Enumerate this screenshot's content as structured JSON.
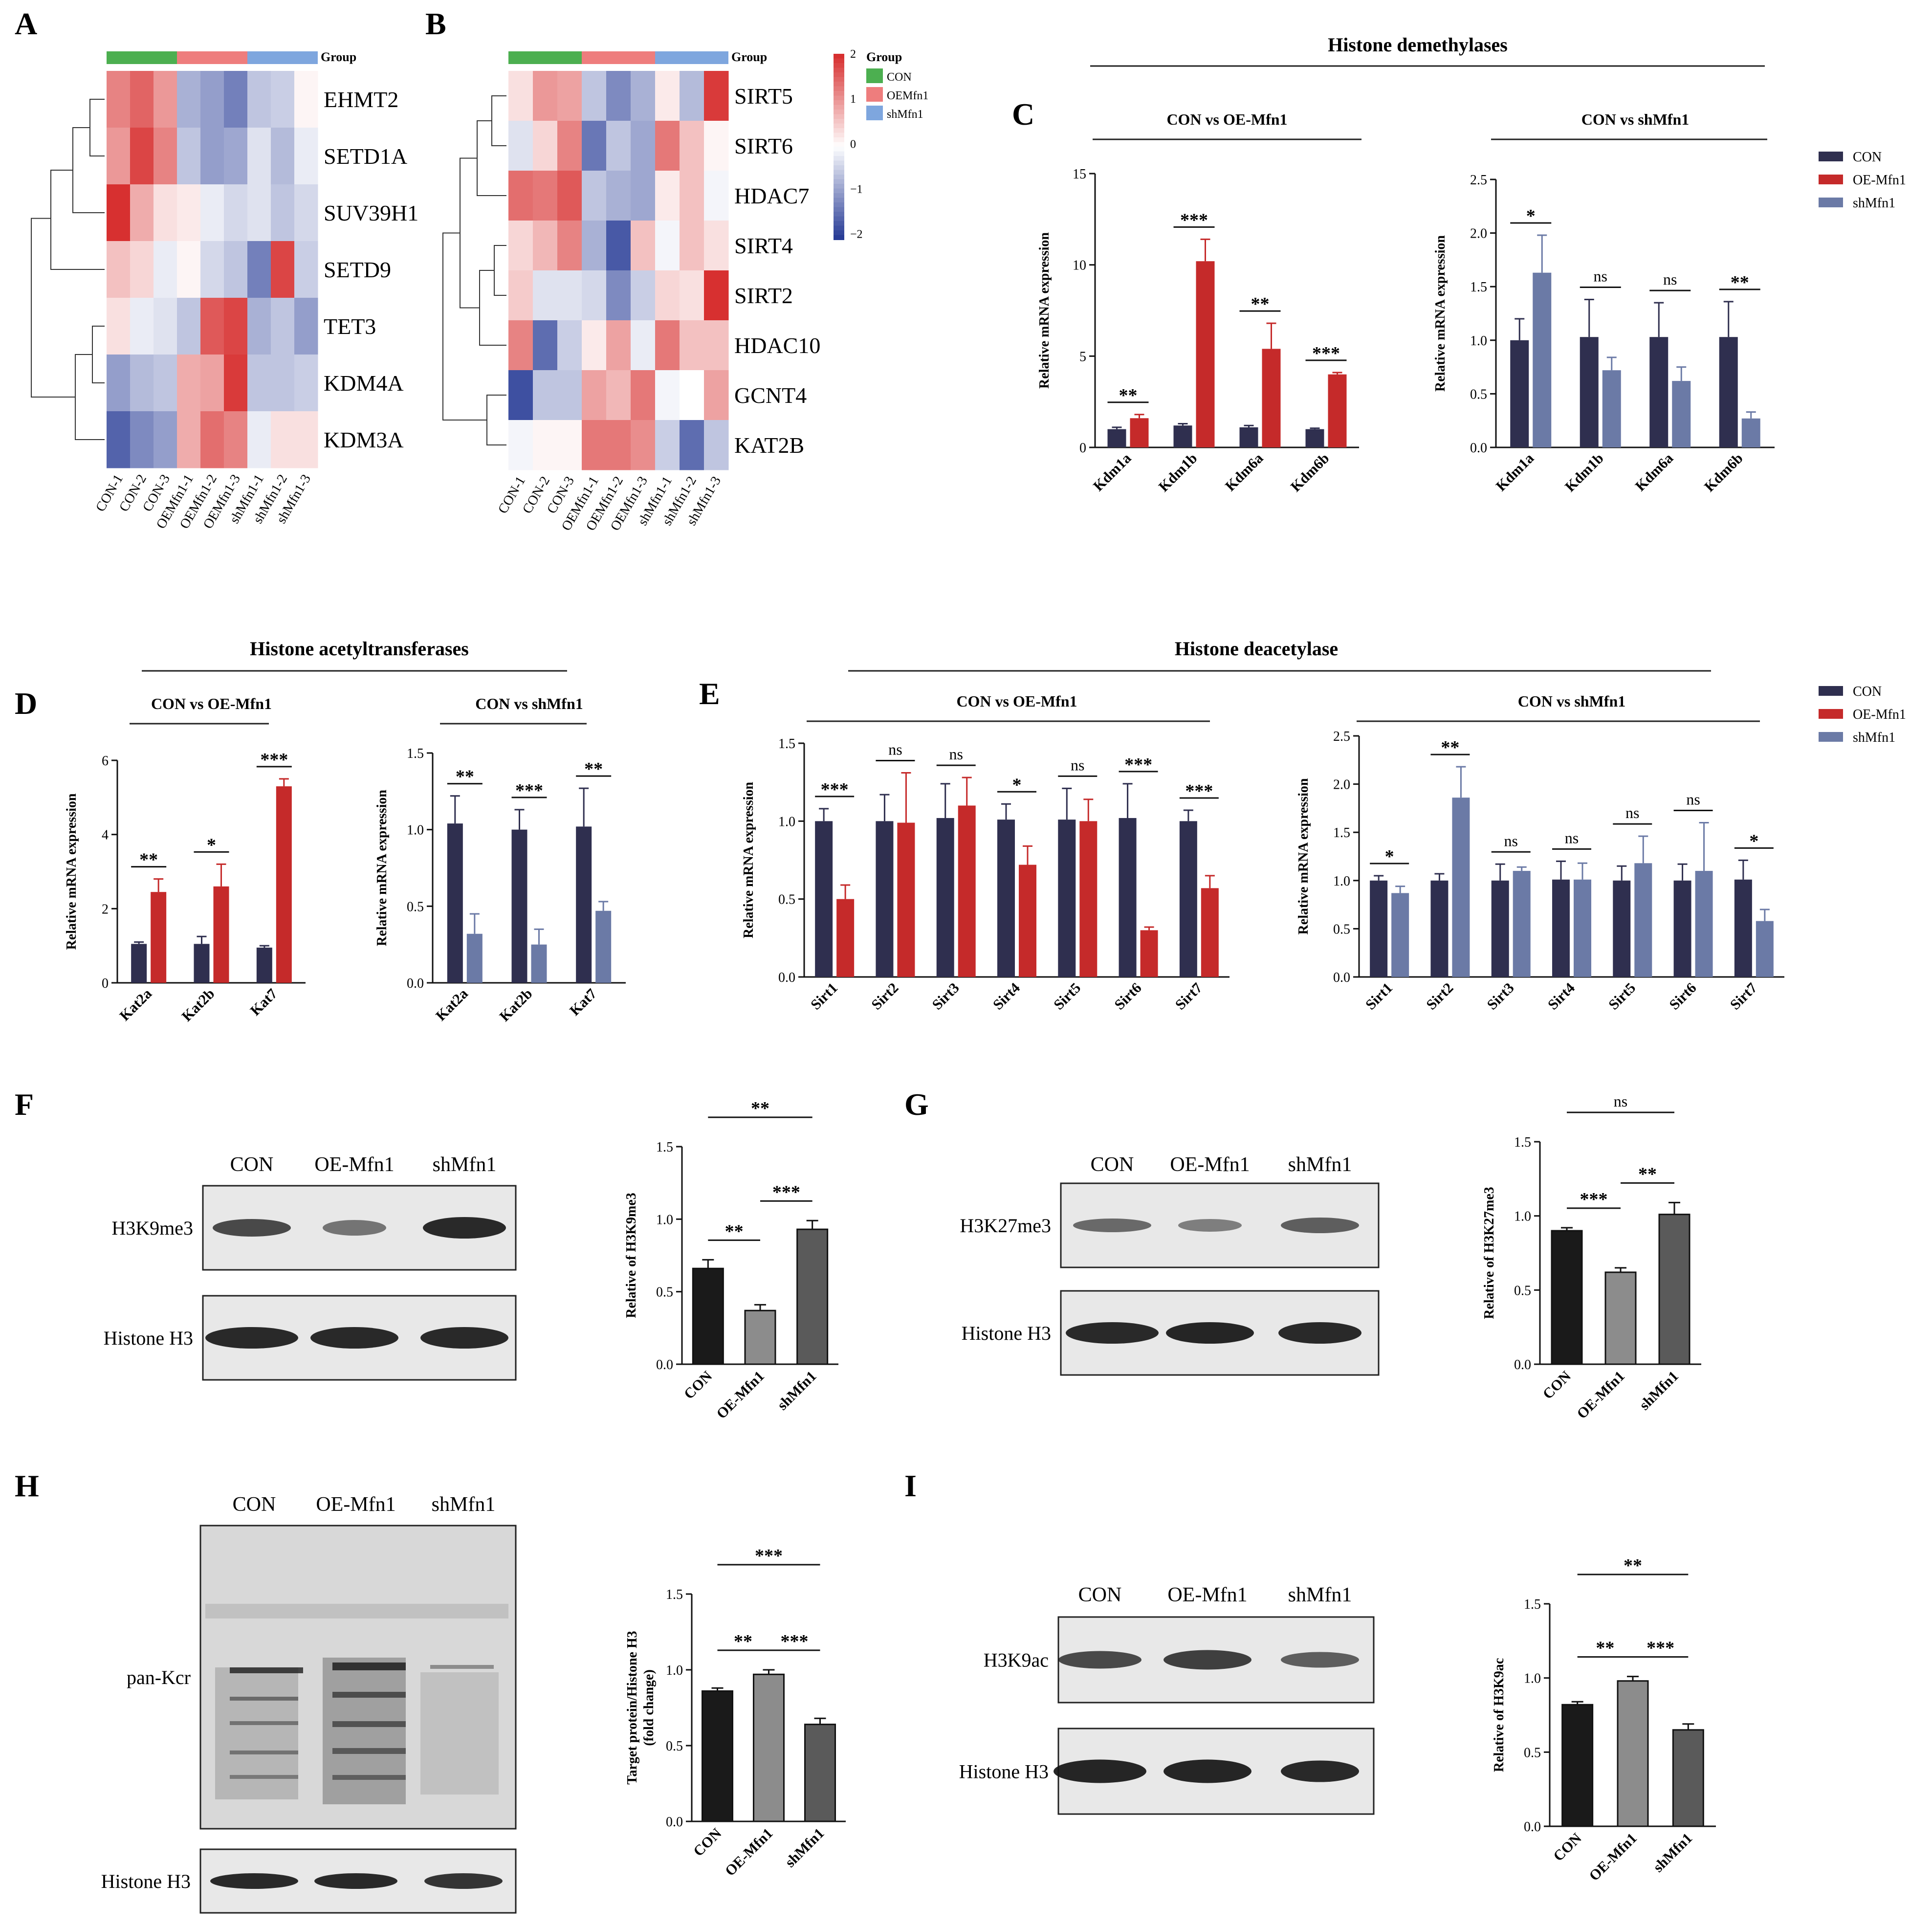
{
  "panel_letters": [
    "A",
    "B",
    "C",
    "D",
    "E",
    "F",
    "G",
    "H",
    "I"
  ],
  "colors": {
    "CON": "#2f2f4f",
    "OE": "#c52a2a",
    "sh": "#6b7aa6",
    "gCON": "#4caf50",
    "gOE": "#ee7d7d",
    "gSH": "#7ea6de",
    "western_black": "#1a1a1a",
    "western_gray": "#8c8c8c",
    "western_dark": "#5a5a5a"
  },
  "legend": {
    "title": "Group",
    "items": [
      "CON",
      "OEMfn1",
      "shMfn1"
    ],
    "scale": [
      "2",
      "1",
      "0",
      "−1",
      "−2"
    ]
  },
  "bar_legend": [
    "CON",
    "OE-Mfn1",
    "shMfn1"
  ],
  "chart_data": [
    {
      "id": "A",
      "type": "heatmap",
      "group_label": "Group",
      "rows": [
        "EHMT2",
        "SETD1A",
        "SUV39H1",
        "SETD9",
        "TET3",
        "KDM4A",
        "KDM3A"
      ],
      "cols": [
        "CON-1",
        "CON-2",
        "CON-3",
        "OEMfn1-1",
        "OEMfn1-2",
        "OEMfn1-3",
        "shMfn1-1",
        "shMfn1-2",
        "shMfn1-3"
      ],
      "values": [
        [
          1.2,
          1.5,
          1.0,
          -0.8,
          -1.0,
          -1.3,
          -0.6,
          -0.5,
          0.1
        ],
        [
          1.0,
          1.8,
          1.2,
          -0.6,
          -1.0,
          -0.9,
          -0.3,
          -0.7,
          -0.2
        ],
        [
          2.0,
          0.8,
          0.3,
          0.2,
          -0.2,
          -0.4,
          -0.3,
          -0.6,
          -0.4
        ],
        [
          0.6,
          0.4,
          -0.2,
          0.1,
          -0.4,
          -0.6,
          -1.3,
          1.8,
          -0.5
        ],
        [
          0.3,
          -0.2,
          -0.3,
          -0.6,
          1.6,
          1.8,
          -0.8,
          -0.6,
          -1.0
        ],
        [
          -1.0,
          -0.7,
          -0.6,
          0.8,
          0.9,
          1.9,
          -0.6,
          -0.6,
          -0.5
        ],
        [
          -1.6,
          -1.2,
          -1.0,
          0.8,
          1.4,
          1.2,
          -0.2,
          0.3,
          0.3
        ]
      ]
    },
    {
      "id": "B",
      "type": "heatmap",
      "group_label": "Group",
      "rows": [
        "SIRT5",
        "SIRT6",
        "HDAC7",
        "SIRT4",
        "SIRT2",
        "HDAC10",
        "GCNT4",
        "KAT2B"
      ],
      "cols": [
        "CON-1",
        "CON-2",
        "CON-3",
        "OEMfn1-1",
        "OEMfn1-2",
        "OEMfn1-3",
        "shMfn1-1",
        "shMfn1-2",
        "shMfn1-3"
      ],
      "values": [
        [
          0.3,
          1.0,
          0.9,
          -0.6,
          -1.2,
          -0.8,
          0.2,
          -0.7,
          1.9
        ],
        [
          -0.3,
          0.4,
          1.2,
          -1.4,
          -0.6,
          -0.9,
          1.3,
          0.6,
          0.1
        ],
        [
          1.4,
          1.3,
          1.6,
          -0.6,
          -0.8,
          -0.9,
          0.2,
          0.6,
          -0.1
        ],
        [
          0.4,
          0.7,
          1.2,
          -0.8,
          -1.7,
          0.6,
          -0.1,
          0.6,
          0.3
        ],
        [
          0.5,
          -0.3,
          -0.3,
          -0.4,
          -1.2,
          -0.5,
          0.4,
          0.3,
          2.0
        ],
        [
          1.2,
          -1.5,
          -0.5,
          0.2,
          0.9,
          -0.2,
          1.3,
          0.6,
          0.6
        ],
        [
          -1.8,
          -0.6,
          -0.6,
          0.9,
          0.7,
          1.3,
          -0.1,
          0.0,
          0.9
        ],
        [
          -0.1,
          0.1,
          0.1,
          1.3,
          1.3,
          1.1,
          -0.5,
          -1.5,
          -0.6
        ]
      ]
    },
    {
      "id": "C1",
      "type": "bar",
      "title": "CON vs OE-Mfn1",
      "ylabel": "Relative mRNA expression",
      "ylim": [
        0,
        15
      ],
      "yticks": [
        0,
        5,
        10,
        15
      ],
      "categories": [
        "Kdm1a",
        "Kdm1b",
        "Kdm6a",
        "Kdm6b"
      ],
      "series": [
        {
          "name": "CON",
          "values": [
            1.0,
            1.2,
            1.1,
            1.0
          ],
          "err": [
            0.1,
            0.1,
            0.1,
            0.05
          ]
        },
        {
          "name": "OE-Mfn1",
          "values": [
            1.6,
            10.2,
            5.4,
            4.0
          ],
          "err": [
            0.2,
            1.2,
            1.4,
            0.1
          ]
        }
      ],
      "sig": [
        "**",
        "***",
        "**",
        "***"
      ]
    },
    {
      "id": "C2",
      "type": "bar",
      "title": "CON vs shMfn1",
      "ylabel": "Relative mRNA expression",
      "ylim": [
        0,
        2.5
      ],
      "yticks": [
        0.0,
        0.5,
        1.0,
        1.5,
        2.0,
        2.5
      ],
      "categories": [
        "Kdm1a",
        "Kdm1b",
        "Kdm6a",
        "Kdm6b"
      ],
      "series": [
        {
          "name": "CON",
          "values": [
            1.0,
            1.03,
            1.03,
            1.03
          ],
          "err": [
            0.2,
            0.35,
            0.32,
            0.33
          ]
        },
        {
          "name": "shMfn1",
          "values": [
            1.63,
            0.72,
            0.62,
            0.27
          ],
          "err": [
            0.35,
            0.12,
            0.13,
            0.06
          ]
        }
      ],
      "sig": [
        "*",
        "ns",
        "ns",
        "**"
      ]
    },
    {
      "id": "D1",
      "type": "bar",
      "title": "CON vs OE-Mfn1",
      "ylabel": "Relative mRNA expression",
      "ylim": [
        0,
        6
      ],
      "yticks": [
        0,
        2,
        4,
        6
      ],
      "categories": [
        "Kat2a",
        "Kat2b",
        "Kat7"
      ],
      "series": [
        {
          "name": "CON",
          "values": [
            1.05,
            1.05,
            0.95
          ],
          "err": [
            0.05,
            0.2,
            0.05
          ]
        },
        {
          "name": "OE-Mfn1",
          "values": [
            2.45,
            2.6,
            5.3
          ],
          "err": [
            0.35,
            0.6,
            0.2
          ]
        }
      ],
      "sig": [
        "**",
        "*",
        "***"
      ]
    },
    {
      "id": "D2",
      "type": "bar",
      "title": "CON vs shMfn1",
      "ylabel": "Relative mRNA expression",
      "ylim": [
        0,
        1.5
      ],
      "yticks": [
        0.0,
        0.5,
        1.0,
        1.5
      ],
      "categories": [
        "Kat2a",
        "Kat2b",
        "Kat7"
      ],
      "series": [
        {
          "name": "CON",
          "values": [
            1.04,
            1.0,
            1.02
          ],
          "err": [
            0.18,
            0.13,
            0.25
          ]
        },
        {
          "name": "shMfn1",
          "values": [
            0.32,
            0.25,
            0.47
          ],
          "err": [
            0.13,
            0.1,
            0.06
          ]
        }
      ],
      "sig": [
        "**",
        "***",
        "**"
      ]
    },
    {
      "id": "E1",
      "type": "bar",
      "title": "CON vs OE-Mfn1",
      "ylabel": "Relative mRNA expression",
      "ylim": [
        0,
        1.5
      ],
      "yticks": [
        0.0,
        0.5,
        1.0,
        1.5
      ],
      "categories": [
        "Sirt1",
        "Sirt2",
        "Sirt3",
        "Sirt4",
        "Sirt5",
        "Sirt6",
        "Sirt7"
      ],
      "series": [
        {
          "name": "CON",
          "values": [
            1.0,
            1.0,
            1.02,
            1.01,
            1.01,
            1.02,
            1.0
          ],
          "err": [
            0.08,
            0.17,
            0.22,
            0.1,
            0.2,
            0.22,
            0.07
          ]
        },
        {
          "name": "OE-Mfn1",
          "values": [
            0.5,
            0.99,
            1.1,
            0.72,
            1.0,
            0.3,
            0.57
          ],
          "err": [
            0.09,
            0.32,
            0.18,
            0.12,
            0.14,
            0.02,
            0.08
          ]
        }
      ],
      "sig": [
        "***",
        "ns",
        "ns",
        "*",
        "ns",
        "***",
        "***"
      ]
    },
    {
      "id": "E2",
      "type": "bar",
      "title": "CON vs shMfn1",
      "ylabel": "Relative mRNA expression",
      "ylim": [
        0,
        2.5
      ],
      "yticks": [
        0.0,
        0.5,
        1.0,
        1.5,
        2.0,
        2.5
      ],
      "categories": [
        "Sirt1",
        "Sirt2",
        "Sirt3",
        "Sirt4",
        "Sirt5",
        "Sirt6",
        "Sirt7"
      ],
      "series": [
        {
          "name": "CON",
          "values": [
            1.0,
            1.0,
            1.0,
            1.01,
            1.0,
            1.0,
            1.01
          ],
          "err": [
            0.05,
            0.07,
            0.17,
            0.19,
            0.15,
            0.17,
            0.2
          ]
        },
        {
          "name": "shMfn1",
          "values": [
            0.87,
            1.86,
            1.1,
            1.01,
            1.18,
            1.1,
            0.58
          ],
          "err": [
            0.07,
            0.32,
            0.04,
            0.17,
            0.28,
            0.5,
            0.12
          ]
        }
      ],
      "sig": [
        "*",
        "**",
        "ns",
        "ns",
        "ns",
        "ns",
        "*"
      ]
    },
    {
      "id": "F",
      "type": "bar",
      "ylabel": "Relative of H3K9me3",
      "ylim": [
        0,
        1.5
      ],
      "yticks": [
        0.0,
        0.5,
        1.0,
        1.5
      ],
      "categories": [
        "CON",
        "OE-Mfn1",
        "shMfn1"
      ],
      "values": [
        0.66,
        0.37,
        0.93
      ],
      "err": [
        0.06,
        0.04,
        0.06
      ],
      "sig": [
        {
          "pair": [
            0,
            1
          ],
          "label": "**"
        },
        {
          "pair": [
            1,
            2
          ],
          "label": "***"
        },
        {
          "pair": [
            0,
            2
          ],
          "label": "**"
        }
      ]
    },
    {
      "id": "G",
      "type": "bar",
      "ylabel": "Relative of H3K27me3",
      "ylim": [
        0,
        1.5
      ],
      "yticks": [
        0.0,
        0.5,
        1.0,
        1.5
      ],
      "categories": [
        "CON",
        "OE-Mfn1",
        "shMfn1"
      ],
      "values": [
        0.9,
        0.62,
        1.01
      ],
      "err": [
        0.02,
        0.03,
        0.08
      ],
      "sig": [
        {
          "pair": [
            0,
            1
          ],
          "label": "***"
        },
        {
          "pair": [
            1,
            2
          ],
          "label": "**"
        },
        {
          "pair": [
            0,
            2
          ],
          "label": "ns"
        }
      ]
    },
    {
      "id": "H",
      "type": "bar",
      "ylabel": "Target protein/Histone H3 (fold change)",
      "ylim": [
        0,
        1.5
      ],
      "yticks": [
        0.0,
        0.5,
        1.0,
        1.5
      ],
      "categories": [
        "CON",
        "OE-Mfn1",
        "shMfn1"
      ],
      "values": [
        0.86,
        0.97,
        0.64
      ],
      "err": [
        0.02,
        0.03,
        0.04
      ],
      "sig": [
        {
          "pair": [
            0,
            1
          ],
          "label": "**"
        },
        {
          "pair": [
            1,
            2
          ],
          "label": "***"
        },
        {
          "pair": [
            0,
            2
          ],
          "label": "***"
        }
      ]
    },
    {
      "id": "I",
      "type": "bar",
      "ylabel": "Relative of H3K9ac",
      "ylim": [
        0,
        1.5
      ],
      "yticks": [
        0.0,
        0.5,
        1.0,
        1.5
      ],
      "categories": [
        "CON",
        "OE-Mfn1",
        "shMfn1"
      ],
      "values": [
        0.82,
        0.98,
        0.65
      ],
      "err": [
        0.02,
        0.03,
        0.04
      ],
      "sig": [
        {
          "pair": [
            0,
            1
          ],
          "label": "**"
        },
        {
          "pair": [
            1,
            2
          ],
          "label": "***"
        },
        {
          "pair": [
            0,
            2
          ],
          "label": "**"
        }
      ]
    }
  ],
  "headers": {
    "C": "Histone demethylases",
    "D": "Histone acetyltransferases",
    "E": "Histone deacetylase"
  },
  "blots": {
    "F": {
      "lanes": [
        "CON",
        "OE-Mfn1",
        "shMfn1"
      ],
      "target": "H3K9me3",
      "loading": "Histone H3"
    },
    "G": {
      "lanes": [
        "CON",
        "OE-Mfn1",
        "shMfn1"
      ],
      "target": "H3K27me3",
      "loading": "Histone H3"
    },
    "H": {
      "lanes": [
        "CON",
        "OE-Mfn1",
        "shMfn1"
      ],
      "target": "pan-Kcr",
      "loading": "Histone H3"
    },
    "I": {
      "lanes": [
        "CON",
        "OE-Mfn1",
        "shMfn1"
      ],
      "target": "H3K9ac",
      "loading": "Histone H3"
    }
  }
}
